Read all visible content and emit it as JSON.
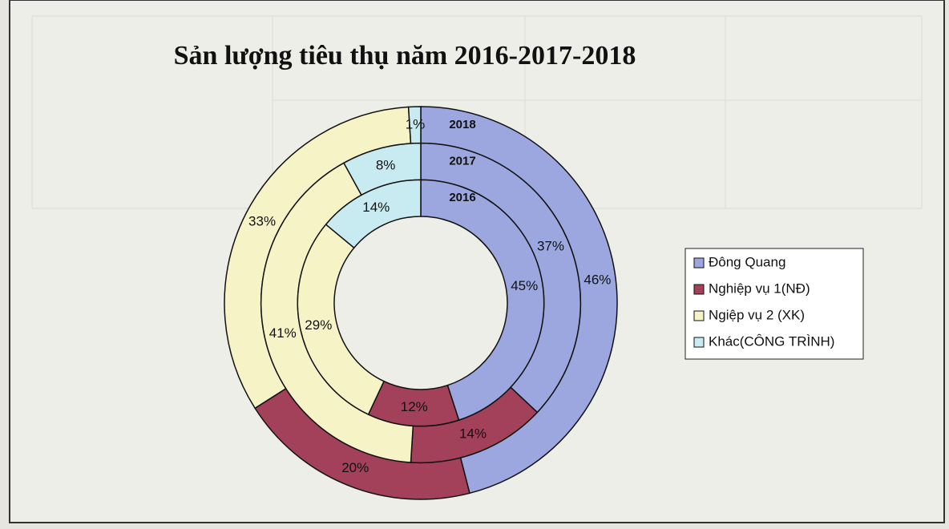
{
  "chart_data": {
    "type": "donut",
    "title": "Sản lượng tiêu thụ năm 2016-2017-2018",
    "categories": [
      "Đông Quang",
      "Nghiệp vụ 1(NĐ)",
      "Ngiệp vụ 2 (XK)",
      "Khác(CÔNG TRÌNH)"
    ],
    "colors": [
      "#9ba7de",
      "#a3405a",
      "#f6f4c6",
      "#c8ebf1"
    ],
    "series": [
      {
        "name": "2018",
        "values": [
          46,
          20,
          33,
          1
        ],
        "value_labels": [
          "46%",
          "20%",
          "33%",
          "1%"
        ]
      },
      {
        "name": "2017",
        "values": [
          37,
          14,
          41,
          8
        ],
        "value_labels": [
          "37%",
          "14%",
          "41%",
          "8%"
        ]
      },
      {
        "name": "2016",
        "values": [
          45,
          12,
          29,
          14
        ],
        "value_labels": [
          "45%",
          "12%",
          "29%",
          "14%"
        ]
      }
    ],
    "legend": "right"
  }
}
